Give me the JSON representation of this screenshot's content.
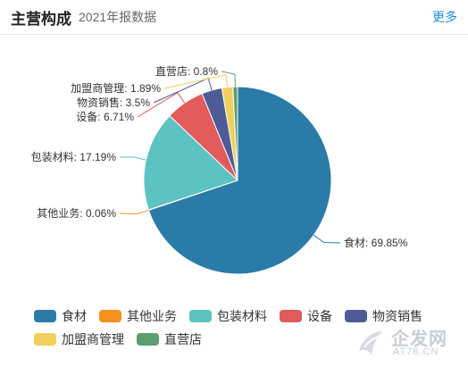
{
  "header": {
    "title": "主营构成",
    "subtitle": "2021年报数据",
    "more_label": "更多"
  },
  "chart_data": {
    "type": "pie",
    "slices": [
      {
        "name": "食材",
        "value": 69.85,
        "label": "食材: 69.85%",
        "color": "#2b7ba8"
      },
      {
        "name": "其他业务",
        "value": 0.06,
        "label": "其他业务: 0.06%",
        "color": "#f5901e"
      },
      {
        "name": "包装材料",
        "value": 17.19,
        "label": "包装材料: 17.19%",
        "color": "#5cc2c2"
      },
      {
        "name": "设备",
        "value": 6.71,
        "label": "设备: 6.71%",
        "color": "#e15b5b"
      },
      {
        "name": "物资销售",
        "value": 3.5,
        "label": "物资销售: 3.5%",
        "color": "#4e5b96"
      },
      {
        "name": "加盟商管理",
        "value": 1.89,
        "label": "加盟商管理: 1.89%",
        "color": "#f0cf5a"
      },
      {
        "name": "直营店",
        "value": 0.8,
        "label": "直营店: 0.8%",
        "color": "#5c9e6e"
      }
    ],
    "legend_position": "bottom"
  },
  "legend": {
    "rows": [
      [
        {
          "label": "食材",
          "color": "#2b7ba8"
        },
        {
          "label": "其他业务",
          "color": "#f5901e"
        },
        {
          "label": "包装材料",
          "color": "#5cc2c2"
        },
        {
          "label": "设备",
          "color": "#e15b5b"
        },
        {
          "label": "物资销售",
          "color": "#4e5b96"
        }
      ],
      [
        {
          "label": "加盟商管理",
          "color": "#f0cf5a"
        },
        {
          "label": "直营店",
          "color": "#5c9e6e"
        }
      ]
    ]
  },
  "watermark": {
    "brand": "企发网",
    "domain": "AT78.CN"
  }
}
